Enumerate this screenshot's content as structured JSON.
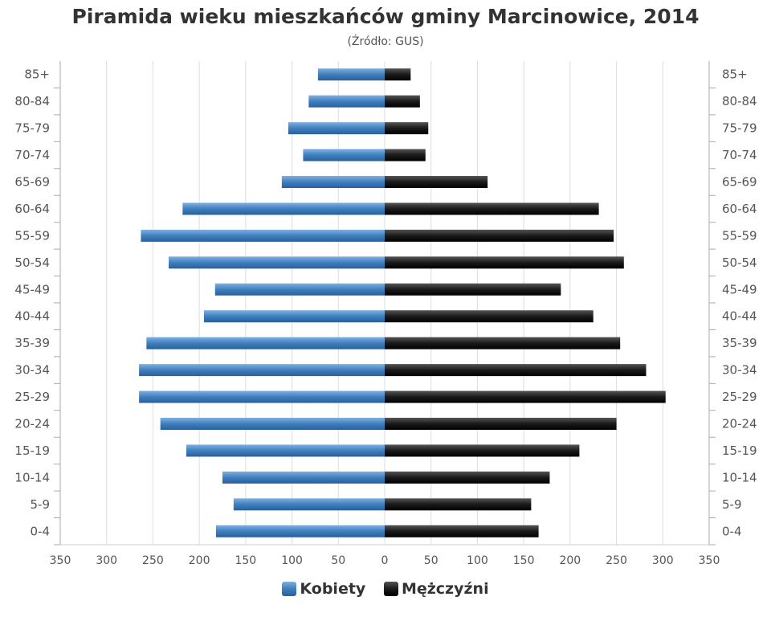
{
  "chart_data": {
    "type": "bar",
    "orientation": "horizontal-pyramid",
    "title": "Piramida wieku mieszkańców gminy Marcinowice, 2014",
    "subtitle": "(Źródło: GUS)",
    "categories": [
      "0-4",
      "5-9",
      "10-14",
      "15-19",
      "20-24",
      "25-29",
      "30-34",
      "35-39",
      "40-44",
      "45-49",
      "50-54",
      "55-59",
      "60-64",
      "65-69",
      "70-74",
      "75-79",
      "80-84",
      "85+"
    ],
    "series": [
      {
        "name": "Kobiety",
        "side": "left",
        "color": "#3f7fbf",
        "values": [
          182,
          163,
          175,
          214,
          242,
          265,
          265,
          257,
          195,
          183,
          233,
          263,
          218,
          111,
          88,
          104,
          82,
          72
        ]
      },
      {
        "name": "Mężczyźni",
        "side": "right",
        "color": "#1a1a1a",
        "values": [
          166,
          158,
          178,
          210,
          250,
          303,
          282,
          254,
          225,
          190,
          258,
          247,
          231,
          111,
          44,
          47,
          38,
          28
        ]
      }
    ],
    "xlim": [
      -350,
      350
    ],
    "xticks": [
      "350",
      "300",
      "250",
      "200",
      "150",
      "100",
      "50",
      "0",
      "50",
      "100",
      "150",
      "200",
      "250",
      "300",
      "350"
    ],
    "legend": "bottom-center",
    "grid": true
  }
}
